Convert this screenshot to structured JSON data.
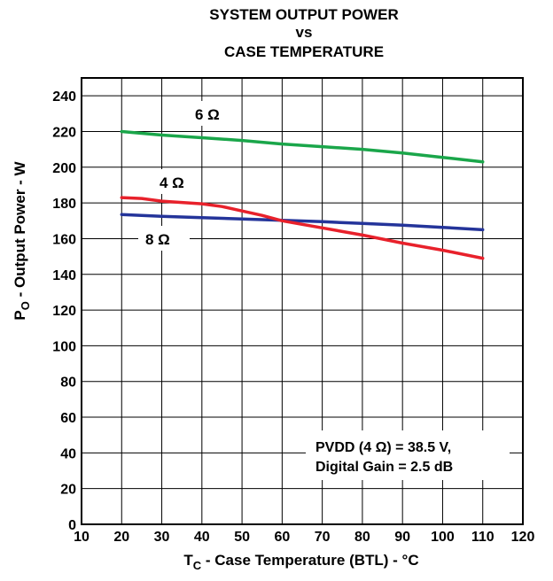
{
  "chart_data": {
    "type": "line",
    "title_lines": [
      "SYSTEM OUTPUT POWER",
      "vs",
      "CASE TEMPERATURE"
    ],
    "xlabel": {
      "main": "T",
      "sub": "C",
      "rest": " - Case Temperature (BTL) - °C"
    },
    "ylabel": {
      "main": "P",
      "sub": "O",
      "rest": " - Output Power - W"
    },
    "xlim": [
      10,
      120
    ],
    "ylim": [
      0,
      250
    ],
    "x_ticks": [
      "10",
      "20",
      "30",
      "40",
      "50",
      "60",
      "70",
      "80",
      "90",
      "100",
      "110",
      "120"
    ],
    "y_ticks": [
      "0",
      "20",
      "40",
      "60",
      "80",
      "100",
      "120",
      "140",
      "160",
      "180",
      "200",
      "220",
      "240"
    ],
    "grid": true,
    "series": [
      {
        "name": "6 Ω",
        "color": "#1aa64a",
        "x": [
          20,
          30,
          40,
          50,
          60,
          70,
          80,
          90,
          100,
          110
        ],
        "y": [
          220,
          218,
          216.5,
          215,
          213,
          211.5,
          210,
          208,
          205.5,
          203
        ]
      },
      {
        "name": "4 Ω",
        "color": "#e8212b",
        "x": [
          20,
          25,
          30,
          40,
          45,
          50,
          55,
          60,
          70,
          80,
          90,
          100,
          110
        ],
        "y": [
          183,
          182.5,
          181,
          179.5,
          178,
          175.5,
          173,
          170,
          166,
          162,
          157.5,
          153.5,
          149
        ]
      },
      {
        "name": "8 Ω",
        "color": "#24349a",
        "x": [
          20,
          30,
          40,
          50,
          60,
          70,
          80,
          90,
          100,
          110
        ],
        "y": [
          173.5,
          172.5,
          171.8,
          171,
          170.3,
          169.5,
          168.5,
          167.5,
          166.3,
          165
        ]
      }
    ],
    "annotation": [
      "PVDD (4 Ω) = 38.5 V,",
      "Digital Gain = 2.5 dB"
    ]
  }
}
